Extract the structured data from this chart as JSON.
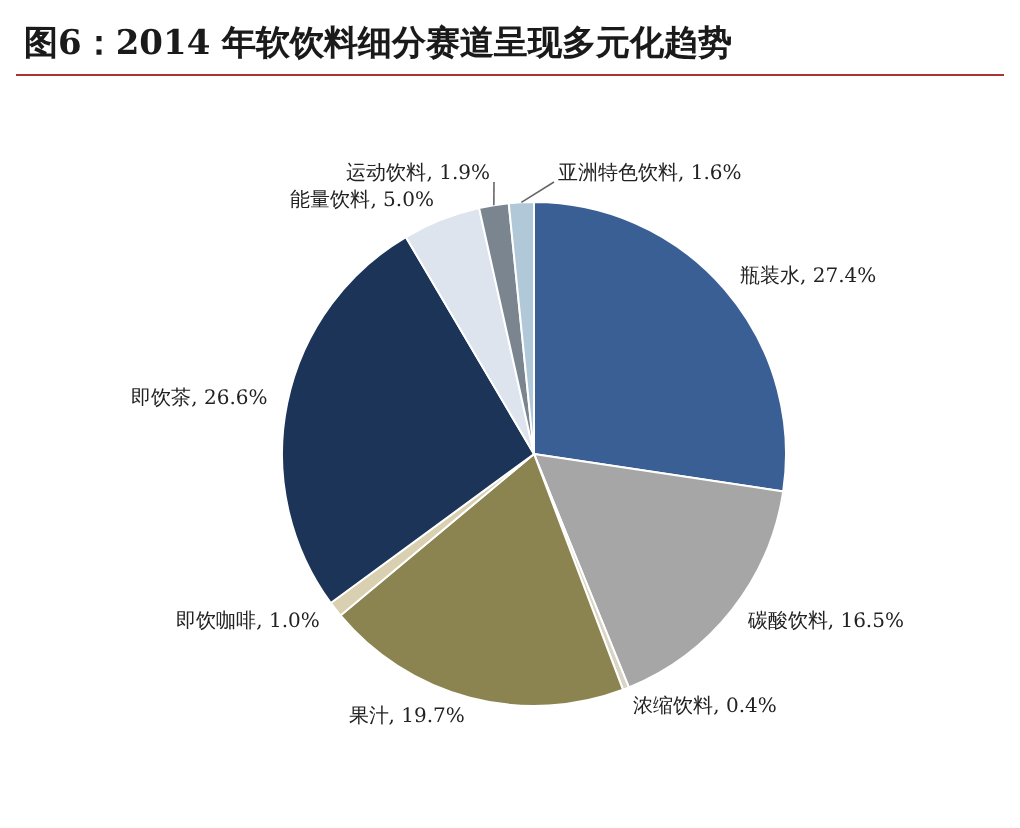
{
  "chart_data": {
    "type": "pie",
    "title": "图6：2014 年软饮料细分赛道呈现多元化趋势",
    "categories": [
      "瓶装水",
      "碳酸饮料",
      "浓缩饮料",
      "果汁",
      "即饮咖啡",
      "即饮茶",
      "能量饮料",
      "运动饮料",
      "亚洲特色饮料"
    ],
    "values": [
      27.4,
      16.5,
      0.4,
      19.7,
      1.0,
      26.6,
      5.0,
      1.9,
      1.6
    ],
    "value_labels": [
      "27.4%",
      "16.5%",
      "0.4%",
      "19.7%",
      "1.0%",
      "26.6%",
      "5.0%",
      "1.9%",
      "1.6%"
    ],
    "colors": [
      "#3a5f94",
      "#a6a6a6",
      "#d9d4c4",
      "#8c8450",
      "#d8d0b0",
      "#1c3458",
      "#dde4ee",
      "#7a8590",
      "#b0c8d8"
    ],
    "legend": false
  }
}
